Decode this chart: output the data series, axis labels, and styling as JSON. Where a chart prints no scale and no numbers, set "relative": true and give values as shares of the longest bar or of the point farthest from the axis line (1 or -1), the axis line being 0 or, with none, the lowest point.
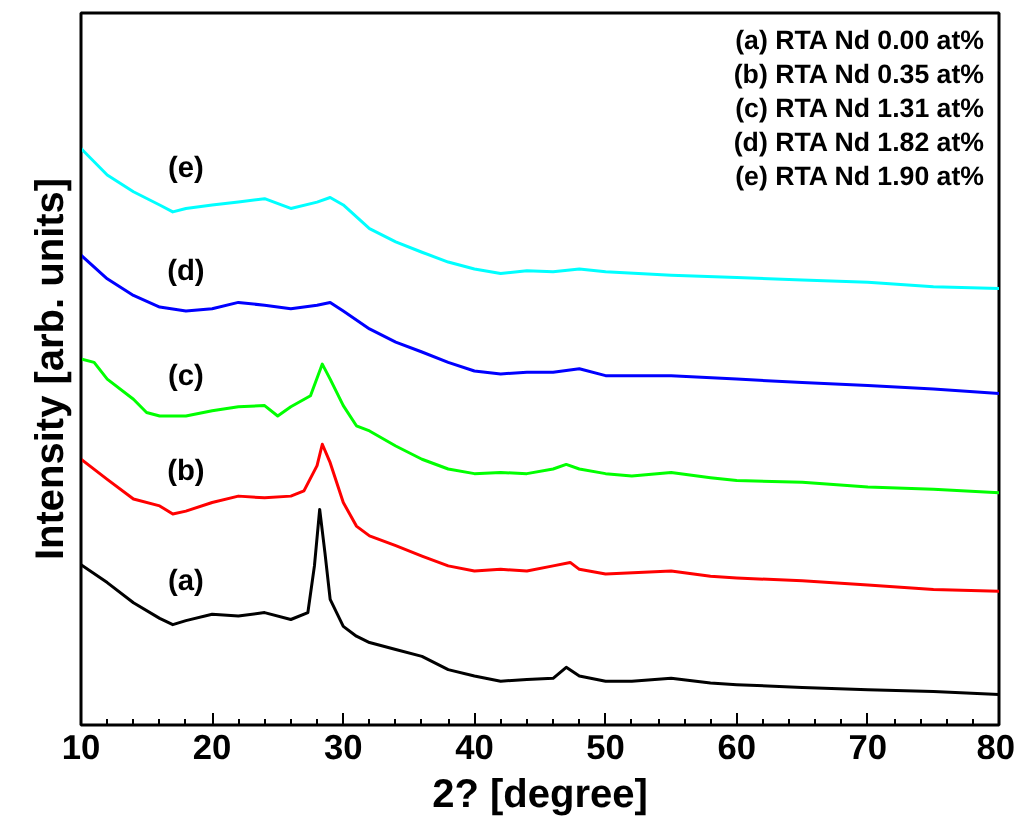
{
  "chart_data": {
    "type": "line",
    "relative": true,
    "xlabel": "2? [degree]",
    "ylabel": "Intensity [arb. units]",
    "xlim": [
      10,
      80
    ],
    "xticks": [
      10,
      20,
      30,
      40,
      50,
      60,
      70,
      80
    ],
    "grid": false,
    "marker": "none",
    "line_style": "solid",
    "annotations": [
      "(a) RTA Nd 0.00 at%",
      "(b) RTA Nd 0.35 at%",
      "(c) RTA Nd 1.31 at%",
      "(d) RTA Nd 1.82 at%",
      "(e) RTA Nd 1.90 at%"
    ],
    "series": [
      {
        "name": "(a)",
        "color": "#000000",
        "x": [
          10,
          12,
          14,
          16,
          17,
          18,
          20,
          22,
          24,
          26,
          27.3,
          27.8,
          28.2,
          28.6,
          29,
          30,
          31,
          32,
          34,
          36,
          38,
          40,
          42,
          44,
          46,
          47,
          48,
          50,
          52,
          55,
          58,
          60,
          65,
          70,
          75,
          80
        ],
        "values": [
          0.278,
          0.247,
          0.212,
          0.185,
          0.174,
          0.181,
          0.192,
          0.189,
          0.195,
          0.183,
          0.195,
          0.276,
          0.374,
          0.299,
          0.218,
          0.171,
          0.154,
          0.143,
          0.131,
          0.119,
          0.096,
          0.085,
          0.076,
          0.079,
          0.081,
          0.1,
          0.085,
          0.076,
          0.076,
          0.081,
          0.073,
          0.07,
          0.065,
          0.061,
          0.058,
          0.053
        ]
      },
      {
        "name": "(b)",
        "color": "#ff0000",
        "x": [
          10,
          12,
          14,
          16,
          17,
          18,
          20,
          22,
          24,
          26,
          27,
          28,
          28.4,
          29,
          30,
          31,
          32,
          34,
          36,
          38,
          40,
          42,
          44,
          46,
          47.3,
          48,
          50,
          55,
          58,
          60,
          65,
          70,
          75,
          80
        ],
        "values": [
          0.461,
          0.426,
          0.392,
          0.38,
          0.366,
          0.371,
          0.386,
          0.397,
          0.394,
          0.397,
          0.406,
          0.45,
          0.487,
          0.455,
          0.386,
          0.345,
          0.328,
          0.311,
          0.293,
          0.276,
          0.267,
          0.27,
          0.267,
          0.276,
          0.282,
          0.27,
          0.262,
          0.267,
          0.258,
          0.255,
          0.25,
          0.243,
          0.235,
          0.232
        ]
      },
      {
        "name": "(c)",
        "color": "#00ff00",
        "x": [
          10,
          11,
          12,
          14,
          15,
          16,
          18,
          20,
          22,
          24,
          25,
          26,
          27.5,
          28.4,
          29,
          30,
          31,
          32,
          34,
          36,
          38,
          40,
          42,
          44,
          46,
          47,
          48,
          50,
          52,
          55,
          58,
          60,
          65,
          70,
          75,
          80
        ],
        "values": [
          0.635,
          0.629,
          0.6,
          0.565,
          0.542,
          0.536,
          0.536,
          0.545,
          0.552,
          0.554,
          0.536,
          0.552,
          0.571,
          0.626,
          0.6,
          0.554,
          0.519,
          0.51,
          0.484,
          0.461,
          0.444,
          0.436,
          0.438,
          0.436,
          0.444,
          0.452,
          0.444,
          0.436,
          0.432,
          0.438,
          0.429,
          0.424,
          0.421,
          0.413,
          0.409,
          0.403
        ]
      },
      {
        "name": "(d)",
        "color": "#0000ff",
        "x": [
          10,
          12,
          14,
          16,
          18,
          20,
          22,
          24,
          26,
          28,
          29,
          30,
          32,
          34,
          36,
          38,
          40,
          42,
          44,
          46,
          48,
          50,
          55,
          60,
          65,
          70,
          75,
          80
        ],
        "values": [
          0.815,
          0.774,
          0.745,
          0.725,
          0.718,
          0.722,
          0.733,
          0.728,
          0.722,
          0.728,
          0.733,
          0.718,
          0.687,
          0.664,
          0.647,
          0.629,
          0.614,
          0.609,
          0.612,
          0.612,
          0.618,
          0.606,
          0.606,
          0.6,
          0.594,
          0.589,
          0.583,
          0.575
        ]
      },
      {
        "name": "(e)",
        "color": "#00ffff",
        "x": [
          10,
          12,
          14,
          16,
          17,
          18,
          20,
          22,
          24,
          26,
          28,
          29,
          30,
          32,
          34,
          36,
          38,
          40,
          42,
          44,
          46,
          48,
          50,
          55,
          60,
          65,
          70,
          75,
          80
        ],
        "values": [
          1.0,
          0.954,
          0.925,
          0.902,
          0.89,
          0.896,
          0.902,
          0.907,
          0.913,
          0.896,
          0.907,
          0.915,
          0.902,
          0.861,
          0.838,
          0.82,
          0.803,
          0.791,
          0.783,
          0.788,
          0.786,
          0.791,
          0.786,
          0.78,
          0.776,
          0.772,
          0.768,
          0.76,
          0.757
        ]
      }
    ]
  }
}
